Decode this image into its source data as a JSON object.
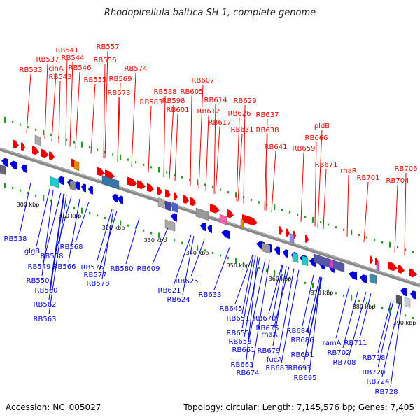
{
  "title": "Rhodopirellula baltica SH 1, complete genome",
  "footer": {
    "accession": "Accession: NC_005027",
    "summary": "Topology: circular; Length: 7,145,576 bp; Genes: 7,405"
  },
  "colors": {
    "forward": "#ee0000",
    "reverse": "#0000dd",
    "backbone": "#888888",
    "tick": "#229922"
  },
  "top_labels": [
    "RB533",
    "RB537",
    "RB541",
    "cinA",
    "RB544",
    "RB543",
    "RB546",
    "RB557",
    "RB556",
    "RB555",
    "RB569",
    "RB573",
    "RB574",
    "RB583",
    "RB588",
    "RB598",
    "RB601",
    "RB605",
    "RB607",
    "RB612",
    "RB614",
    "RB617",
    "RB626",
    "RB629",
    "RB631",
    "RB637",
    "RB638",
    "RB641",
    "RB659",
    "RB666",
    "pldB",
    "RB671",
    "rhaR",
    "RB701",
    "RB704",
    "RB706"
  ],
  "bottom_labels": [
    "RB538",
    "glgB",
    "RB558",
    "RB549",
    "RB550",
    "RB560",
    "RB562",
    "RB563",
    "RB566",
    "RB568",
    "RB576",
    "RB577",
    "RB578",
    "RB580",
    "RB609",
    "RB621",
    "RB624",
    "RB625",
    "RB633",
    "RB645",
    "RB651",
    "RB655",
    "RB658",
    "RB661",
    "RB663",
    "RB670",
    "rhaA",
    "RB674",
    "RB675",
    "RB679",
    "fucA",
    "RB683",
    "RB684",
    "RB686",
    "RB691",
    "RB693",
    "RB695",
    "ramA",
    "RB702",
    "RB708",
    "RB711",
    "RB718",
    "RB720",
    "RB724",
    "RB728"
  ],
  "scale_ticks": [
    "300 kbp",
    "310 kbp",
    "320 kbp",
    "330 kbp",
    "340 kbp",
    "350 kbp",
    "360 kbp",
    "370 kbp",
    "380 kbp",
    "390 kbp"
  ]
}
